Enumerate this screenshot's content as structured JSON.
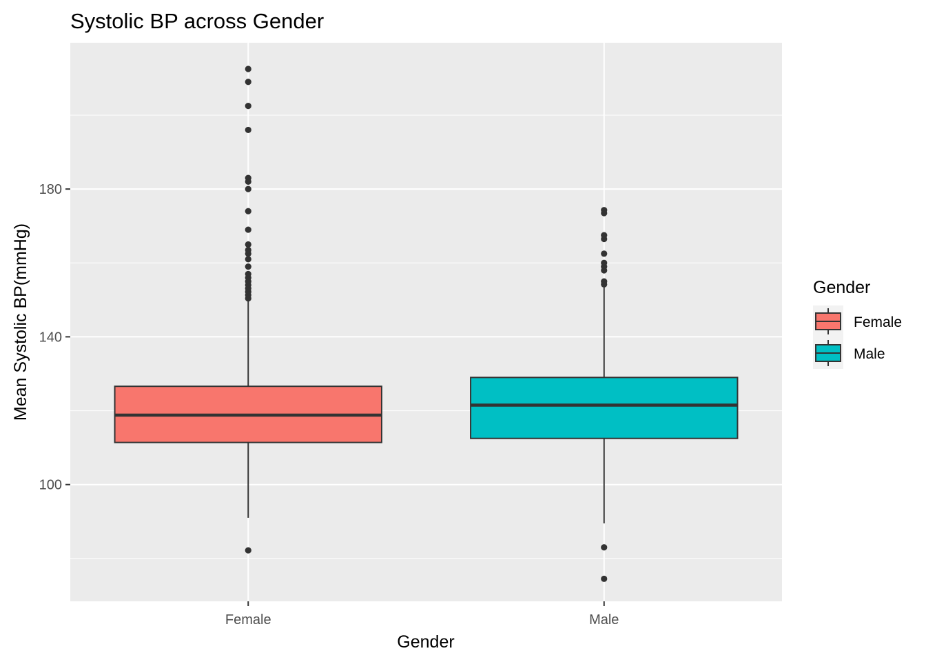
{
  "chart_data": {
    "type": "boxplot",
    "title": "Systolic BP across Gender",
    "xlabel": "Gender",
    "ylabel": "Mean Systolic BP(mmHg)",
    "ylim": [
      68.4,
      219.6
    ],
    "y_ticks": [
      100,
      140,
      180
    ],
    "y_minor_ticks": [
      80,
      120,
      160,
      200
    ],
    "categories": [
      "Female",
      "Male"
    ],
    "grid": true,
    "legend": {
      "title": "Gender",
      "position": "right",
      "entries": [
        "Female",
        "Male"
      ]
    },
    "series": [
      {
        "name": "Female",
        "color": "#F8766D",
        "whisker_low": 91.0,
        "q1": 111.4,
        "median": 118.8,
        "q3": 126.6,
        "whisker_high": 150.0,
        "outliers": [
          82.2,
          150.4,
          151.3,
          152.2,
          153.1,
          154.0,
          155.0,
          156.0,
          157.0,
          159.0,
          161.0,
          162.5,
          163.5,
          165.0,
          169.0,
          174.0,
          180.0,
          182.0,
          183.0,
          196.0,
          202.5,
          209.0,
          212.5
        ]
      },
      {
        "name": "Male",
        "color": "#00BFC4",
        "whisker_low": 89.5,
        "q1": 112.5,
        "median": 121.5,
        "q3": 129.0,
        "whisker_high": 154.0,
        "outliers": [
          74.5,
          83.0,
          154.2,
          155.0,
          158.0,
          159.0,
          160.0,
          162.5,
          166.5,
          167.5,
          173.5,
          174.3
        ]
      }
    ]
  }
}
